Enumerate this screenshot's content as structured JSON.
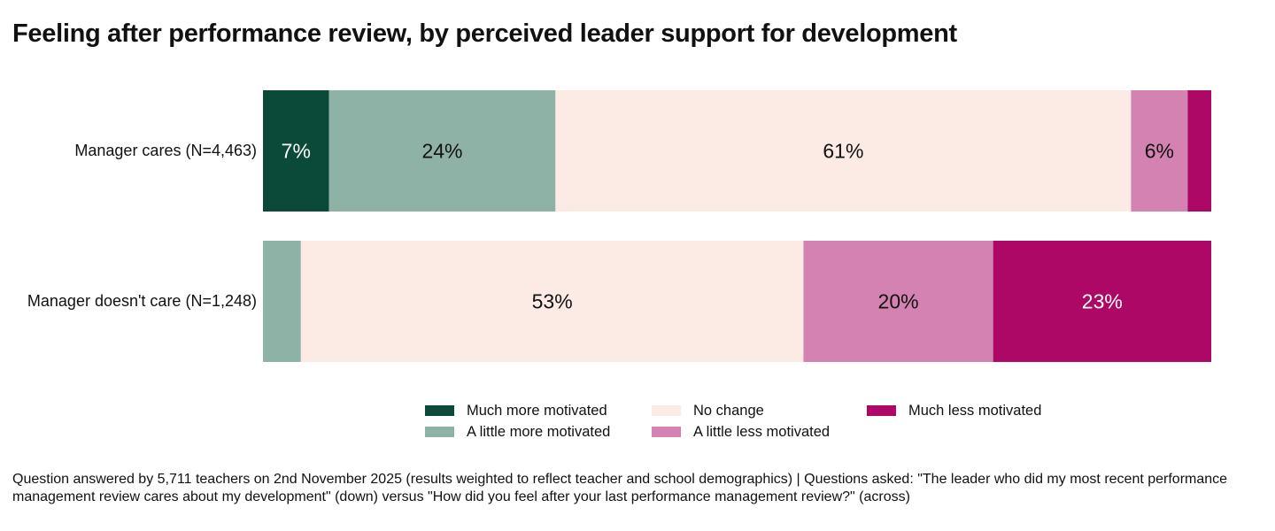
{
  "chart_data": {
    "type": "bar",
    "orientation": "horizontal-stacked-100",
    "title": "Feeling after performance review, by perceived leader support for development",
    "categories": [
      "Manager cares (N=4,463)",
      "Manager doesn't care (N=1,248)"
    ],
    "series": [
      {
        "name": "Much more motivated",
        "color": "#0b4a38",
        "values": [
          7,
          0
        ],
        "labels": [
          "7%",
          ""
        ],
        "label_color": "#ffffff"
      },
      {
        "name": "A little more motivated",
        "color": "#8fb2a7",
        "values": [
          24,
          4
        ],
        "labels": [
          "24%",
          ""
        ],
        "label_color": "#111111"
      },
      {
        "name": "No change",
        "color": "#fbebe4",
        "values": [
          61,
          53
        ],
        "labels": [
          "61%",
          "53%"
        ],
        "label_color": "#111111"
      },
      {
        "name": "A little less motivated",
        "color": "#d482b1",
        "values": [
          6,
          20
        ],
        "labels": [
          "6%",
          "20%"
        ],
        "label_color": "#111111"
      },
      {
        "name": "Much less motivated",
        "color": "#ad0865",
        "values": [
          2.5,
          23
        ],
        "labels": [
          "",
          "23%"
        ],
        "label_color": "#ffffff"
      }
    ],
    "legend_position": "bottom",
    "grid": false
  },
  "legend": {
    "items": [
      "Much more motivated",
      "A little more motivated",
      "No change",
      "A little less motivated",
      "Much less motivated"
    ]
  },
  "footnote": "Question answered by 5,711 teachers on 2nd November 2025 (results weighted to reflect teacher and school demographics) | Questions asked: \"The leader who did my most recent performance management review cares about my development\" (down) versus \"How did you feel after your last performance management review?\" (across)"
}
